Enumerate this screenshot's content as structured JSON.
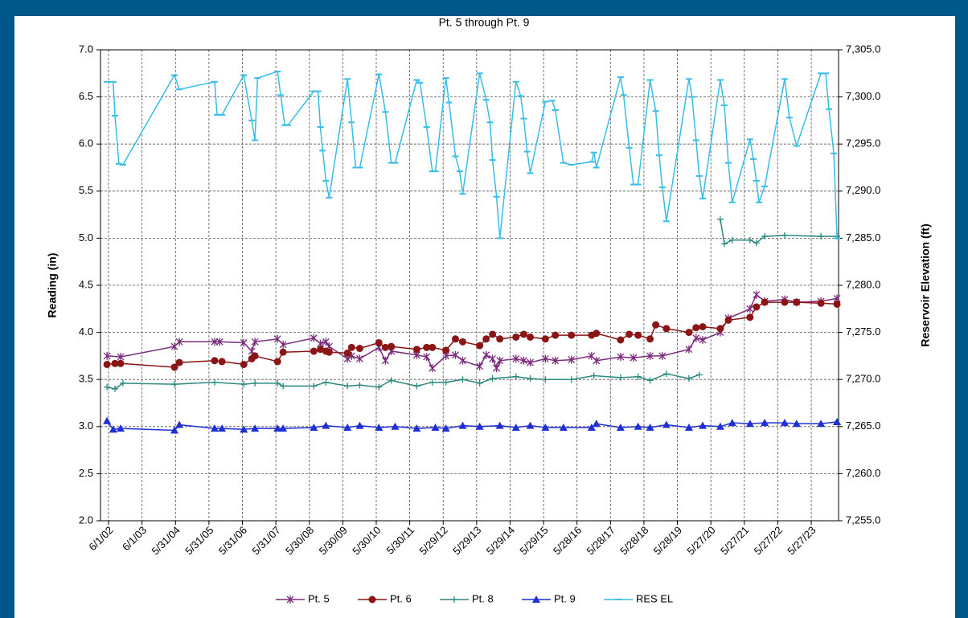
{
  "chart_data": {
    "type": "line",
    "title": "Pt. 5 through Pt. 9",
    "ylabel": "Reading (in)",
    "y2label": "Reservoir Elevation (ft)",
    "grid": true,
    "legend": "bottom",
    "xlim": [
      "2002-03-05",
      "2024-03-20"
    ],
    "xticks": [
      {
        "value": "2002-06-01",
        "label": "6/1/02"
      },
      {
        "value": "2003-06-01",
        "label": "6/1/03"
      },
      {
        "value": "2004-05-31",
        "label": "5/31/04"
      },
      {
        "value": "2005-05-31",
        "label": "5/31/05"
      },
      {
        "value": "2006-05-31",
        "label": "5/31/06"
      },
      {
        "value": "2007-05-31",
        "label": "5/31/07"
      },
      {
        "value": "2008-05-30",
        "label": "5/30/08"
      },
      {
        "value": "2009-05-30",
        "label": "5/30/09"
      },
      {
        "value": "2010-05-30",
        "label": "5/30/10"
      },
      {
        "value": "2011-05-30",
        "label": "5/30/11"
      },
      {
        "value": "2012-05-29",
        "label": "5/29/12"
      },
      {
        "value": "2013-05-29",
        "label": "5/29/13"
      },
      {
        "value": "2014-05-29",
        "label": "5/29/14"
      },
      {
        "value": "2015-05-29",
        "label": "5/29/15"
      },
      {
        "value": "2016-05-28",
        "label": "5/28/16"
      },
      {
        "value": "2017-05-28",
        "label": "5/28/17"
      },
      {
        "value": "2018-05-28",
        "label": "5/28/18"
      },
      {
        "value": "2019-05-28",
        "label": "5/28/19"
      },
      {
        "value": "2020-05-27",
        "label": "5/27/20"
      },
      {
        "value": "2021-05-27",
        "label": "5/27/21"
      },
      {
        "value": "2022-05-27",
        "label": "5/27/22"
      },
      {
        "value": "2023-05-27",
        "label": "5/27/23"
      }
    ],
    "ylim": [
      2,
      7
    ],
    "yticks": [
      {
        "value": 2,
        "label": "2.0"
      },
      {
        "value": 2.5,
        "label": "2.5"
      },
      {
        "value": 3,
        "label": "3.0"
      },
      {
        "value": 3.5,
        "label": "3.5"
      },
      {
        "value": 4,
        "label": "4.0"
      },
      {
        "value": 4.5,
        "label": "4.5"
      },
      {
        "value": 5,
        "label": "5.0"
      },
      {
        "value": 5.5,
        "label": "5.5"
      },
      {
        "value": 6,
        "label": "6.0"
      },
      {
        "value": 6.5,
        "label": "6.5"
      },
      {
        "value": 7,
        "label": "7.0"
      }
    ],
    "y2lim": [
      7255,
      7305
    ],
    "y2ticks": [
      {
        "value": 7255,
        "label": "7,255.0"
      },
      {
        "value": 7260,
        "label": "7,260.0"
      },
      {
        "value": 7265,
        "label": "7,265.0"
      },
      {
        "value": 7270,
        "label": "7,270.0"
      },
      {
        "value": 7275,
        "label": "7,275.0"
      },
      {
        "value": 7280,
        "label": "7,280.0"
      },
      {
        "value": 7285,
        "label": "7,285.0"
      },
      {
        "value": 7290,
        "label": "7,290.0"
      },
      {
        "value": 7295,
        "label": "7,295.0"
      },
      {
        "value": 7300,
        "label": "7,300.0"
      },
      {
        "value": 7305,
        "label": "7,305.0"
      }
    ],
    "series": [
      {
        "name": "Pt. 5",
        "color": "#7b2a7d",
        "marker": "star",
        "x": [
          "2002-05-15",
          "2002-10-10",
          "2004-05-20",
          "2004-07-12",
          "2005-08-01",
          "2005-09-25",
          "2006-06-15",
          "2006-09-10",
          "2006-10-15",
          "2007-06-18",
          "2007-08-18",
          "2008-07-18",
          "2008-09-28",
          "2008-11-27",
          "2009-01-01",
          "2009-07-20",
          "2009-09-03",
          "2009-12-01",
          "2010-06-28",
          "2010-09-07",
          "2010-11-10",
          "2011-08-15",
          "2011-12-01",
          "2012-02-01",
          "2012-06-28",
          "2012-10-10",
          "2012-12-28",
          "2013-07-01",
          "2013-09-10",
          "2013-11-18",
          "2014-01-01",
          "2014-02-06",
          "2014-08-01",
          "2014-10-25",
          "2015-01-04",
          "2015-06-18",
          "2015-10-04",
          "2016-03-28",
          "2016-11-03",
          "2016-12-25",
          "2017-09-15",
          "2018-02-03",
          "2018-08-03",
          "2018-12-15",
          "2019-10-01",
          "2019-12-18",
          "2020-02-28",
          "2020-09-07",
          "2020-12-04",
          "2021-07-28",
          "2021-10-06",
          "2022-01-04",
          "2022-08-10",
          "2022-12-18",
          "2023-09-10",
          "2024-03-03"
        ],
        "values": [
          3.75,
          3.74,
          3.85,
          3.9,
          3.9,
          3.9,
          3.89,
          3.8,
          3.9,
          3.93,
          3.87,
          3.94,
          3.88,
          3.9,
          3.85,
          3.72,
          3.75,
          3.72,
          3.84,
          3.7,
          3.8,
          3.76,
          3.74,
          3.62,
          3.75,
          3.76,
          3.7,
          3.64,
          3.76,
          3.72,
          3.62,
          3.7,
          3.72,
          3.7,
          3.68,
          3.72,
          3.7,
          3.71,
          3.75,
          3.7,
          3.74,
          3.73,
          3.75,
          3.75,
          3.82,
          3.94,
          3.92,
          4.0,
          4.15,
          4.25,
          4.4,
          4.33,
          4.35,
          4.32,
          4.33,
          4.36
        ]
      },
      {
        "name": "Pt. 6",
        "color": "#8b1414",
        "marker": "circle",
        "x": [
          "2002-05-15",
          "2002-08-10",
          "2002-10-10",
          "2004-05-20",
          "2004-07-12",
          "2005-08-01",
          "2005-10-20",
          "2006-06-15",
          "2006-09-10",
          "2006-10-15",
          "2007-06-18",
          "2007-08-18",
          "2008-07-18",
          "2008-09-28",
          "2008-11-27",
          "2009-01-01",
          "2009-07-20",
          "2009-09-03",
          "2009-12-01",
          "2010-06-28",
          "2010-09-07",
          "2010-11-10",
          "2011-08-15",
          "2011-12-01",
          "2012-02-01",
          "2012-06-28",
          "2012-10-10",
          "2012-12-28",
          "2013-07-01",
          "2013-09-10",
          "2013-11-18",
          "2014-02-06",
          "2014-08-01",
          "2014-10-25",
          "2015-01-04",
          "2015-06-18",
          "2015-10-04",
          "2016-03-28",
          "2016-11-03",
          "2016-12-25",
          "2017-09-15",
          "2017-12-18",
          "2018-03-25",
          "2018-08-03",
          "2018-10-04",
          "2019-01-28",
          "2019-10-01",
          "2019-12-18",
          "2020-02-28",
          "2020-09-07",
          "2020-12-04",
          "2021-07-28",
          "2021-10-06",
          "2022-01-04",
          "2022-08-10",
          "2022-12-18",
          "2023-09-10",
          "2024-03-03"
        ],
        "values": [
          3.66,
          3.67,
          3.67,
          3.63,
          3.68,
          3.7,
          3.69,
          3.66,
          3.72,
          3.75,
          3.69,
          3.79,
          3.8,
          3.82,
          3.8,
          3.79,
          3.78,
          3.84,
          3.83,
          3.89,
          3.84,
          3.85,
          3.82,
          3.84,
          3.84,
          3.81,
          3.93,
          3.9,
          3.86,
          3.93,
          3.98,
          3.93,
          3.95,
          3.98,
          3.95,
          3.93,
          3.97,
          3.97,
          3.97,
          3.99,
          3.92,
          3.98,
          3.97,
          3.93,
          4.08,
          4.04,
          4.0,
          4.05,
          4.06,
          4.04,
          4.13,
          4.16,
          4.27,
          4.32,
          4.32,
          4.32,
          4.31,
          4.3
        ]
      },
      {
        "name": "Pt. 8",
        "color": "#2a8a80",
        "marker": "plus",
        "x": [
          "2002-05-15",
          "2002-08-10",
          "2002-11-05",
          "2004-05-20",
          "2005-08-01",
          "2006-06-15",
          "2006-10-15",
          "2007-06-18",
          "2007-08-18",
          "2008-07-18",
          "2008-11-27",
          "2009-07-20",
          "2009-12-01",
          "2010-06-28",
          "2010-11-10",
          "2011-08-15",
          "2012-02-01",
          "2012-06-28",
          "2012-12-28",
          "2013-07-01",
          "2013-11-18",
          "2014-08-01",
          "2015-01-04",
          "2015-06-18",
          "2016-03-28",
          "2016-11-28",
          "2017-09-15",
          "2018-03-25",
          "2018-08-03",
          "2019-01-28",
          "2019-10-01",
          "2020-01-22",
          "2020-06-01",
          "2020-09-07",
          "2020-10-22",
          "2021-01-15",
          "2021-07-28",
          "2021-10-06",
          "2022-01-04",
          "2022-08-10",
          "2023-09-10",
          "2024-03-03"
        ],
        "values": [
          3.42,
          3.4,
          3.46,
          3.45,
          3.47,
          3.45,
          3.46,
          3.46,
          3.43,
          3.43,
          3.47,
          3.43,
          3.44,
          3.42,
          3.49,
          3.43,
          3.47,
          3.47,
          3.5,
          3.46,
          3.51,
          3.53,
          3.51,
          3.5,
          3.5,
          3.54,
          3.52,
          3.53,
          3.49,
          3.56,
          3.51,
          3.55,
          null,
          5.2,
          4.94,
          4.98,
          4.98,
          4.95,
          5.02,
          5.03,
          5.02,
          5.02
        ]
      },
      {
        "name": "Pt. 9",
        "color": "#1f2fd6",
        "marker": "triangle",
        "x": [
          "2002-05-15",
          "2002-07-22",
          "2002-10-10",
          "2004-05-20",
          "2004-07-12",
          "2005-08-01",
          "2005-10-20",
          "2006-06-15",
          "2006-10-15",
          "2007-06-18",
          "2007-08-18",
          "2008-07-18",
          "2008-11-27",
          "2009-07-20",
          "2009-12-01",
          "2010-06-28",
          "2010-12-22",
          "2011-08-15",
          "2012-03-05",
          "2012-06-28",
          "2012-12-28",
          "2013-07-01",
          "2014-02-06",
          "2014-08-01",
          "2015-01-04",
          "2015-06-18",
          "2016-01-01",
          "2016-11-03",
          "2016-12-25",
          "2017-09-15",
          "2018-03-25",
          "2018-08-03",
          "2019-01-28",
          "2019-10-01",
          "2020-02-28",
          "2020-09-07",
          "2021-01-15",
          "2021-07-28",
          "2022-01-04",
          "2022-08-10",
          "2022-12-18",
          "2023-09-10",
          "2024-03-03"
        ],
        "values": [
          3.06,
          2.97,
          2.98,
          2.96,
          3.02,
          2.98,
          2.98,
          2.97,
          2.98,
          2.98,
          2.98,
          2.99,
          3.01,
          2.99,
          3.01,
          2.99,
          3.0,
          2.98,
          2.99,
          2.98,
          3.01,
          3.0,
          3.01,
          2.99,
          3.01,
          2.99,
          2.99,
          2.99,
          3.03,
          2.99,
          3.0,
          2.99,
          3.02,
          2.99,
          3.01,
          3.0,
          3.04,
          3.03,
          3.04,
          3.04,
          3.03,
          3.03,
          3.05
        ]
      },
      {
        "name": "RES EL",
        "color": "#36bde8",
        "marker": "dash",
        "axis": "y2",
        "x": [
          "2002-05-15",
          "2002-07-22",
          "2002-08-10",
          "2002-09-22",
          "2002-11-05",
          "2004-05-20",
          "2004-07-12",
          "2005-08-01",
          "2005-08-28",
          "2005-10-20",
          "2006-06-15",
          "2006-09-10",
          "2006-10-15",
          "2006-11-12",
          "2007-06-18",
          "2007-07-22",
          "2007-09-05",
          "2007-10-10",
          "2008-07-18",
          "2008-09-01",
          "2008-09-28",
          "2008-10-22",
          "2008-11-27",
          "2009-01-01",
          "2009-07-20",
          "2009-09-03",
          "2009-10-18",
          "2009-12-01",
          "2010-06-28",
          "2010-09-07",
          "2010-11-10",
          "2010-12-22",
          "2011-08-15",
          "2011-09-18",
          "2011-12-01",
          "2012-02-01",
          "2012-03-05",
          "2012-06-28",
          "2012-08-01",
          "2012-10-10",
          "2012-11-25",
          "2012-12-28",
          "2013-07-01",
          "2013-09-10",
          "2013-10-22",
          "2013-11-18",
          "2014-01-01",
          "2014-02-06",
          "2014-08-01",
          "2014-09-22",
          "2014-10-25",
          "2014-12-01",
          "2015-01-04",
          "2015-06-18",
          "2015-09-01",
          "2015-10-04",
          "2016-01-01",
          "2016-03-28",
          "2016-11-03",
          "2016-11-28",
          "2016-12-25",
          "2017-09-15",
          "2017-10-18",
          "2017-12-18",
          "2018-02-03",
          "2018-03-25",
          "2018-08-03",
          "2018-10-04",
          "2018-11-10",
          "2018-12-15",
          "2019-01-28",
          "2019-10-01",
          "2019-11-04",
          "2019-12-18",
          "2020-01-22",
          "2020-02-28",
          "2020-09-07",
          "2020-10-22",
          "2020-12-04",
          "2021-01-15",
          "2021-07-28",
          "2021-09-03",
          "2021-10-06",
          "2021-11-03",
          "2022-01-04",
          "2022-08-10",
          "2022-10-01",
          "2022-12-18",
          "2023-09-10",
          "2023-11-01",
          "2023-12-06",
          "2024-01-28",
          "2024-03-03"
        ],
        "values": [
          7301.6,
          7301.6,
          7298,
          7292.9,
          7292.8,
          7302.3,
          7300.8,
          7301.6,
          7298.1,
          7298.1,
          7302.3,
          7297.5,
          7295.4,
          7302,
          7302.7,
          7300.2,
          7297,
          7297,
          7300.6,
          7300.6,
          7296.8,
          7294.3,
          7291.1,
          7289.3,
          7301.9,
          7297.3,
          7292.5,
          7292.5,
          7302.4,
          7298.4,
          7293,
          7293,
          7301.8,
          7301.5,
          7296.8,
          7292.1,
          7292.1,
          7302,
          7299.4,
          7293.7,
          7292.1,
          7289.7,
          7302.5,
          7299.7,
          7297.3,
          7293.3,
          7289.4,
          7285,
          7301.6,
          7300.1,
          7297.7,
          7294.2,
          7291.9,
          7299.5,
          7299.6,
          7298.6,
          7293,
          7292.8,
          7293.1,
          7294.1,
          7292.5,
          7302.1,
          7300.2,
          7294.6,
          7290.7,
          7290.7,
          7301.8,
          7298.5,
          7293.8,
          7290.4,
          7286.8,
          7301.9,
          7300,
          7295.4,
          7291.6,
          7289.2,
          7301.8,
          7299.1,
          7293,
          7288.8,
          7295.5,
          7293.4,
          7291.1,
          7288.8,
          7290.5,
          7301.9,
          7297.8,
          7294.8,
          7302.5,
          7302.5,
          7298.7,
          7294,
          7285
        ]
      }
    ]
  }
}
